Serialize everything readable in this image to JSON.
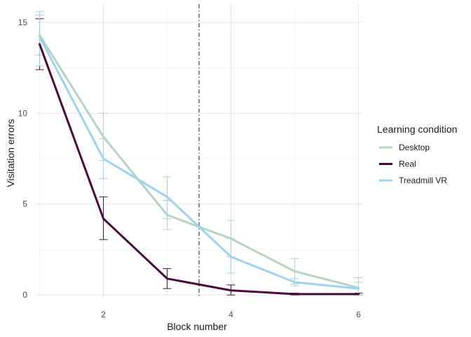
{
  "chart_data": {
    "type": "line",
    "xlabel": "Block number",
    "ylabel": "Visitation errors",
    "xlim": [
      0.95,
      6.05
    ],
    "ylim": [
      -0.15,
      16.0
    ],
    "x_ticks": [
      2,
      4,
      6
    ],
    "y_ticks": [
      0,
      5,
      10,
      15
    ],
    "x_minor": [
      1,
      3,
      5
    ],
    "y_minor": [
      2.5,
      7.5,
      12.5
    ],
    "grid": true,
    "vline": {
      "x": 3.5,
      "style": "dash-dot"
    },
    "legend": {
      "title": "Learning condition",
      "placement": "right"
    },
    "series": [
      {
        "name": "Desktop",
        "color": "#b5d3c0",
        "x": [
          1,
          2,
          3,
          4,
          5,
          6
        ],
        "y": [
          14.3,
          8.7,
          4.4,
          3.1,
          1.3,
          0.4
        ],
        "err_low": [
          13.2,
          7.4,
          3.6,
          2.1,
          0.6,
          0.1
        ],
        "err_high": [
          15.4,
          10.0,
          5.2,
          4.1,
          2.0,
          0.7
        ]
      },
      {
        "name": "Real",
        "color": "#4a0a3c",
        "x": [
          1,
          2,
          3,
          4,
          5,
          6
        ],
        "y": [
          13.8,
          4.2,
          0.9,
          0.25,
          0.05,
          0.05
        ],
        "err_low": [
          12.4,
          3.05,
          0.35,
          0.0,
          0.0,
          0.0
        ],
        "err_high": [
          15.2,
          5.4,
          1.45,
          0.55,
          0.1,
          0.1
        ]
      },
      {
        "name": "Treadmill VR",
        "color": "#9dd3ee",
        "x": [
          1,
          2,
          3,
          4,
          5,
          6
        ],
        "y": [
          14.2,
          7.5,
          5.4,
          2.1,
          0.7,
          0.35
        ],
        "err_low": [
          12.6,
          6.4,
          4.2,
          1.2,
          0.5,
          0.0
        ],
        "err_high": [
          15.6,
          8.6,
          6.5,
          3.1,
          0.9,
          0.95
        ]
      }
    ]
  }
}
